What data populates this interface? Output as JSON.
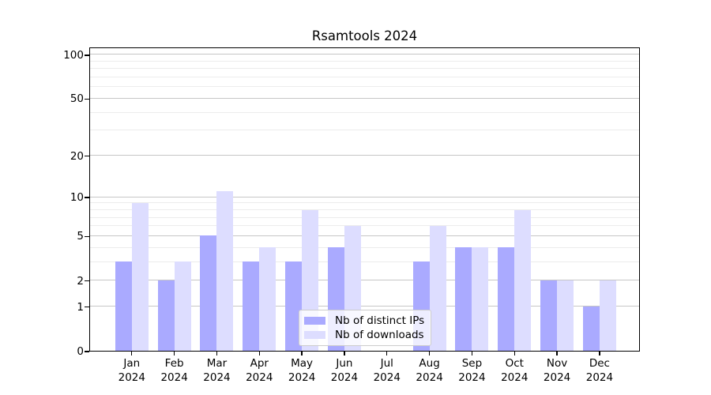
{
  "title": "Rsamtools 2024",
  "chart_data": {
    "type": "bar",
    "title": "Rsamtools 2024",
    "categories": [
      "Jan 2024",
      "Feb 2024",
      "Mar 2024",
      "Apr 2024",
      "May 2024",
      "Jun 2024",
      "Jul 2024",
      "Aug 2024",
      "Sep 2024",
      "Oct 2024",
      "Nov 2024",
      "Dec 2024"
    ],
    "series": [
      {
        "name": "Nb of distinct IPs",
        "color": "#aaaaff",
        "values": [
          3,
          2,
          5,
          3,
          3,
          4,
          0,
          3,
          4,
          4,
          2,
          1
        ]
      },
      {
        "name": "Nb of downloads",
        "color": "#ddddff",
        "values": [
          9,
          3,
          11,
          4,
          8,
          6,
          0,
          6,
          4,
          8,
          2,
          2
        ]
      }
    ],
    "xlabel": "",
    "ylabel": "",
    "yscale": "log1p",
    "ylim": [
      0,
      113
    ],
    "y_major_ticks": [
      0,
      1,
      2,
      5,
      10,
      20,
      50,
      100
    ],
    "y_minor_gridlines": [
      3,
      4,
      6,
      7,
      8,
      9,
      30,
      40,
      60,
      70,
      80,
      90
    ],
    "grid": "horizontal",
    "legend_position": "lower center"
  },
  "colors": {
    "major_gridline": "#c6c6c6",
    "minor_gridline": "#ececec",
    "axis_line": "#000000",
    "legend_border": "#cccccc",
    "background": "#ffffff"
  }
}
